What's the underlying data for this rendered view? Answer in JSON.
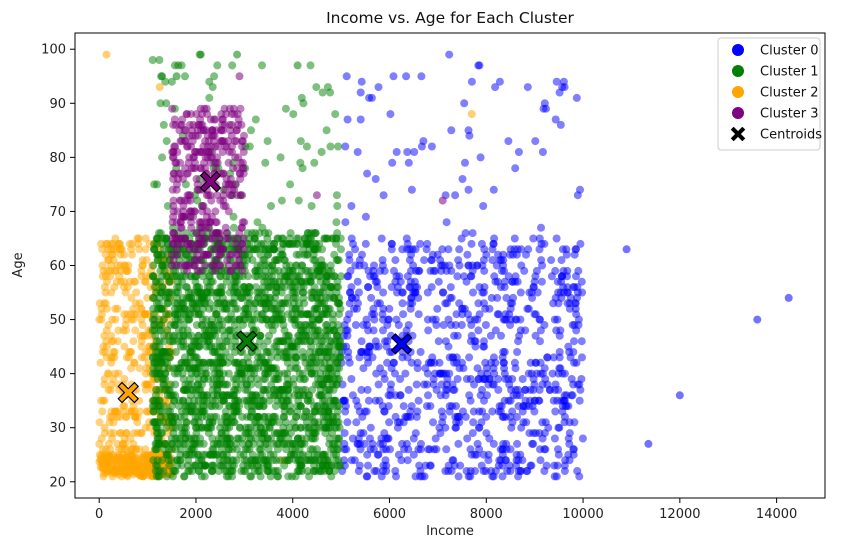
{
  "chart_data": {
    "type": "scatter",
    "title": "Income vs. Age for Each Cluster",
    "xlabel": "Income",
    "ylabel": "Age",
    "xlim": [
      -500,
      15000
    ],
    "ylim": [
      17,
      103
    ],
    "xticks": [
      0,
      2000,
      4000,
      6000,
      8000,
      10000,
      12000,
      14000
    ],
    "yticks": [
      20,
      30,
      40,
      50,
      60,
      70,
      80,
      90,
      100
    ],
    "grid": false,
    "legend": "top-right",
    "series": [
      {
        "name": "Cluster 0",
        "color": "#0000ff",
        "x_range": [
          5000,
          10000
        ],
        "y_range": [
          21,
          65
        ],
        "sparse_y_range": [
          65,
          99
        ],
        "outliers": [
          [
            10900,
            63
          ],
          [
            12000,
            36
          ],
          [
            11350,
            27
          ],
          [
            13600,
            50
          ],
          [
            14250,
            54
          ]
        ]
      },
      {
        "name": "Cluster 1",
        "color": "#008000",
        "x_range": [
          1100,
          5000
        ],
        "y_range": [
          21,
          66
        ],
        "sparse_y_range": [
          66,
          99
        ],
        "outliers": [
          [
            2100,
            99
          ],
          [
            2850,
            99
          ],
          [
            1600,
            95
          ],
          [
            4100,
            97
          ],
          [
            1300,
            95
          ]
        ]
      },
      {
        "name": "Cluster 2",
        "color": "#ffa500",
        "x_range": [
          0,
          1500
        ],
        "y_range": [
          21,
          65
        ],
        "outliers": [
          [
            150,
            99
          ],
          [
            1250,
            93
          ],
          [
            7700,
            88
          ],
          [
            3800,
            24
          ]
        ]
      },
      {
        "name": "Cluster 3",
        "color": "#800080",
        "x_range": [
          1500,
          3000
        ],
        "y_range": [
          59,
          89
        ],
        "outliers": [
          [
            2900,
            95
          ],
          [
            7100,
            72
          ],
          [
            4500,
            73
          ]
        ]
      }
    ],
    "centroids": {
      "name": "Centroids",
      "points": [
        [
          6250,
          45.5
        ],
        [
          3050,
          46
        ],
        [
          600,
          36.5
        ],
        [
          2300,
          75.5
        ]
      ]
    }
  }
}
